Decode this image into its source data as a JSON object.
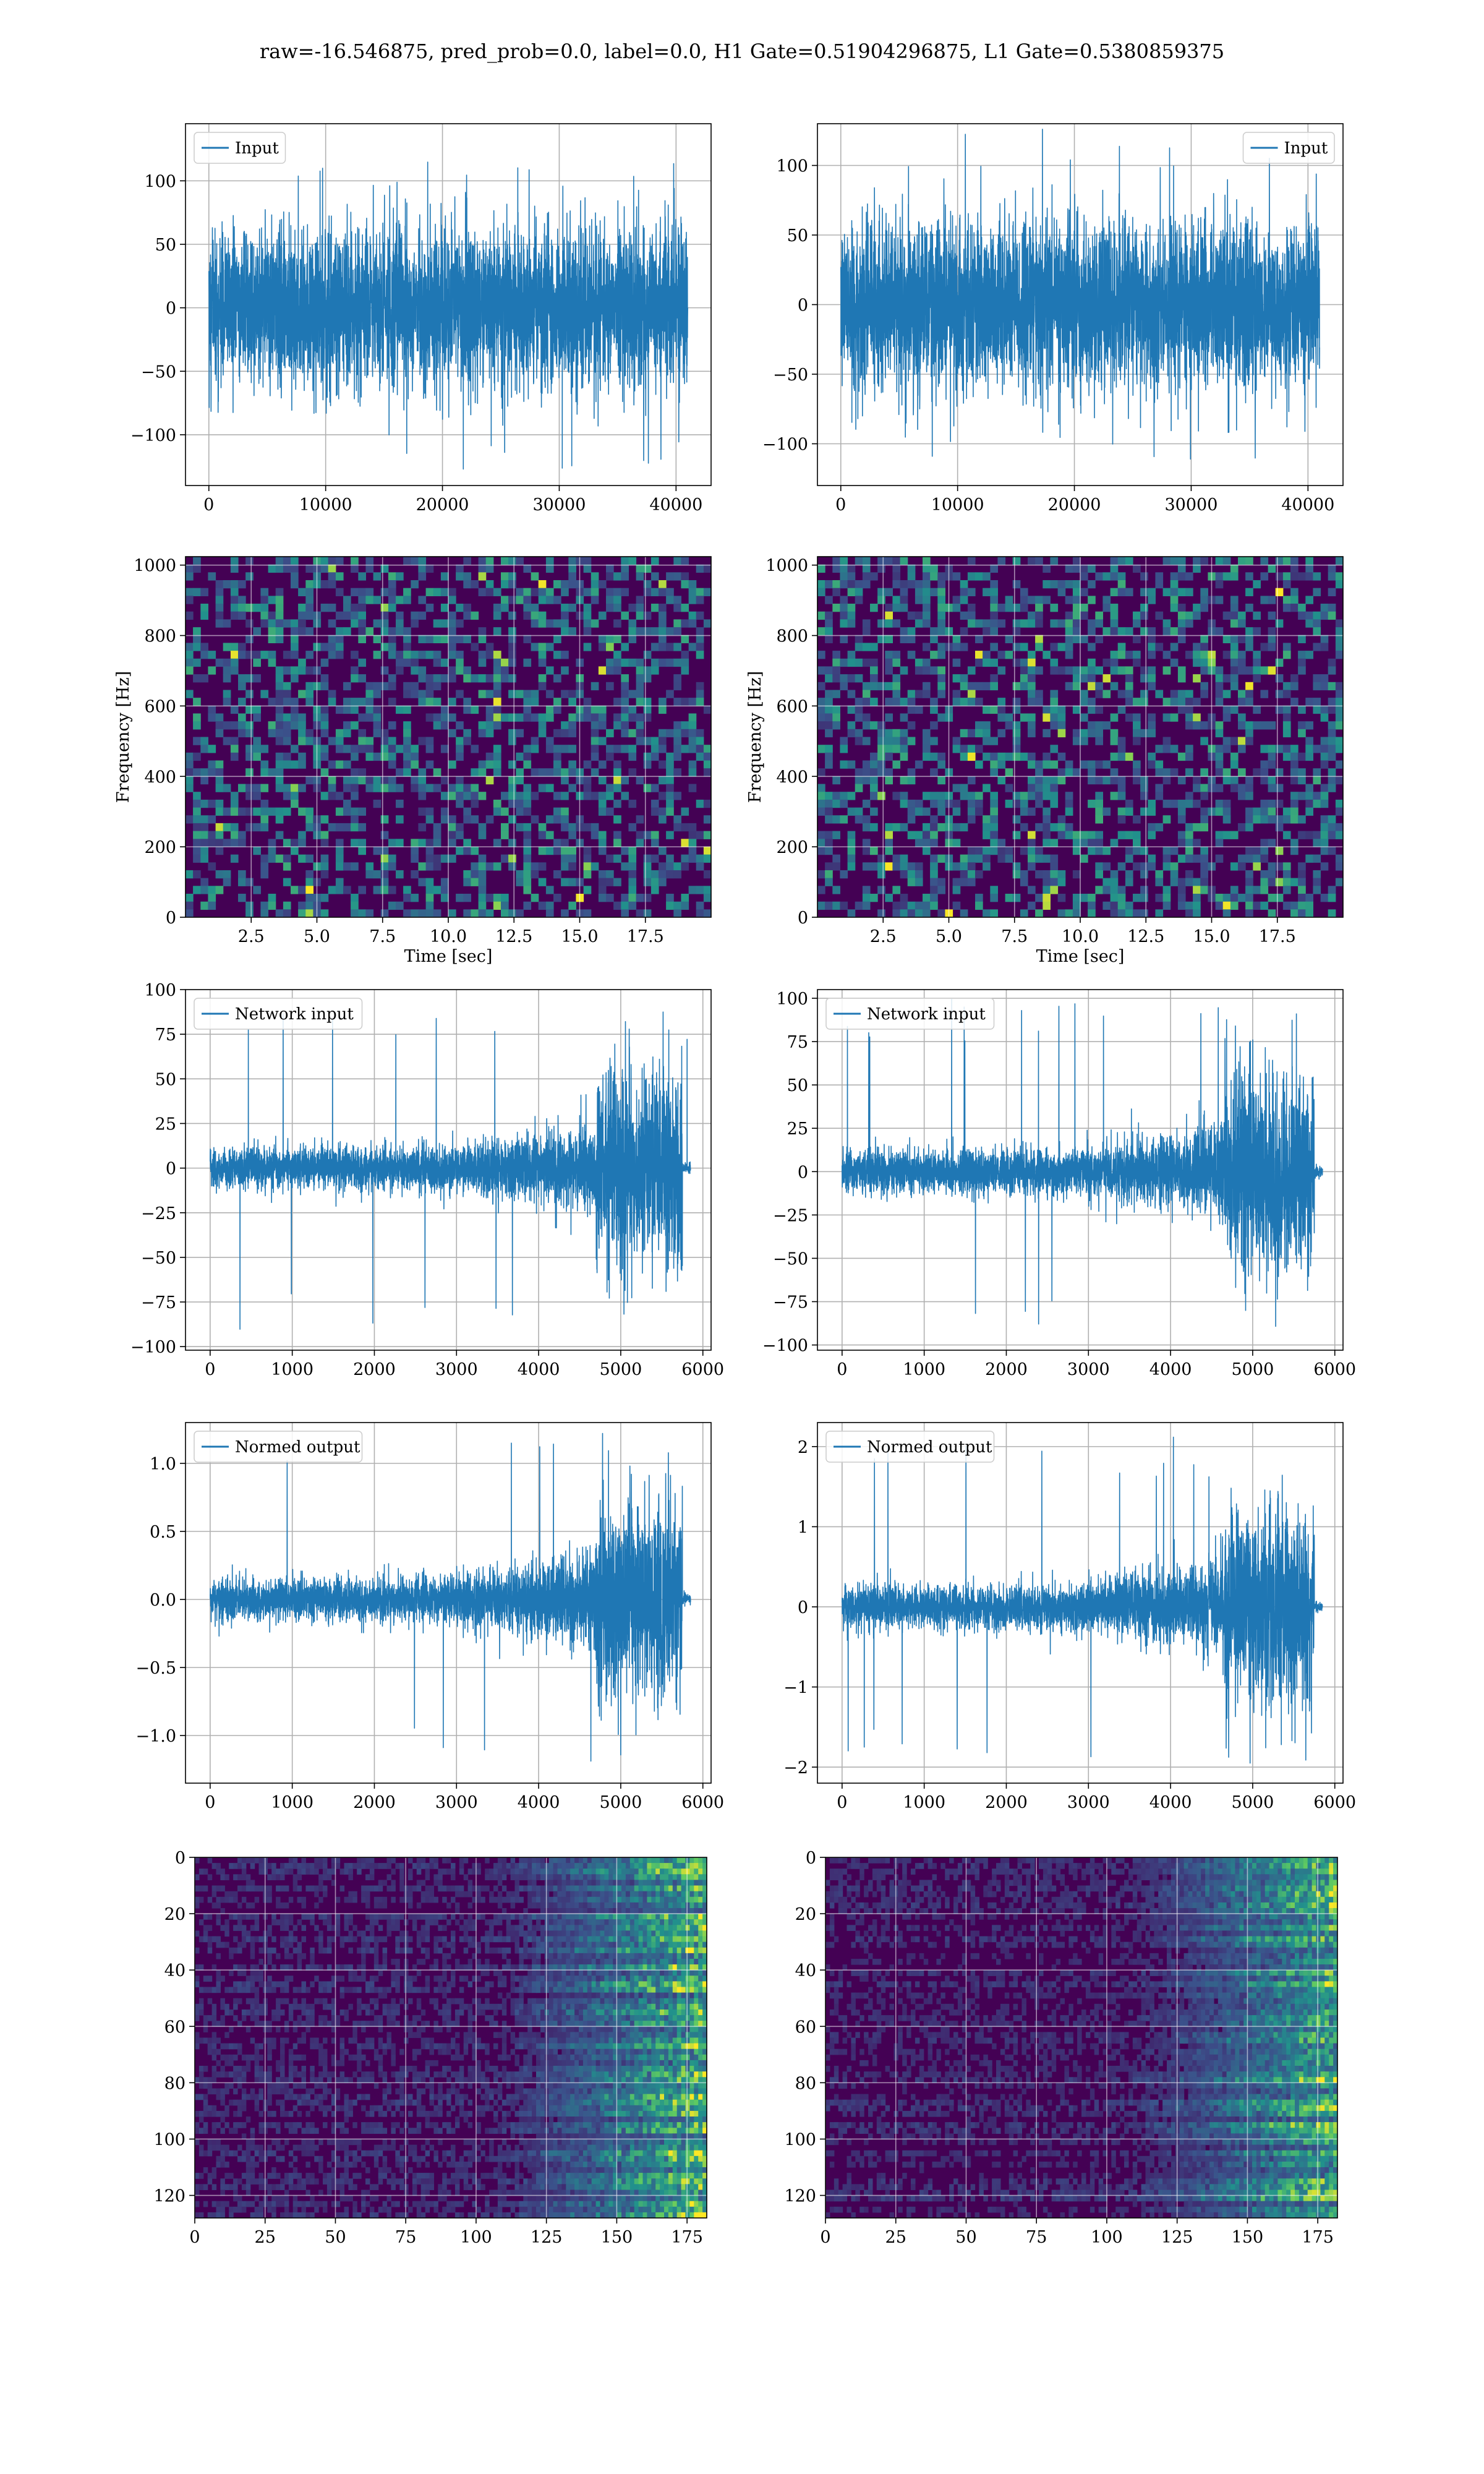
{
  "suptitle": "raw=-16.546875, pred_prob=0.0, label=0.0, H1 Gate=0.51904296875, L1 Gate=0.5380859375",
  "colors": {
    "line": "#1f77b4",
    "grid": "#b0b0b0",
    "map_low": "#440154",
    "map_mid": "#21918c",
    "map_high": "#fde725"
  },
  "chart_data": [
    {
      "type": "line",
      "legend": [
        "Input"
      ],
      "legend_loc": "upper-left",
      "grid": true,
      "xlim": [
        -2000,
        43000
      ],
      "ylim": [
        -140,
        145
      ],
      "xticks": [
        0,
        10000,
        20000,
        30000,
        40000
      ],
      "xtick_labels": [
        "0",
        "10000",
        "20000",
        "30000",
        "40000"
      ],
      "yticks": [
        -100,
        -50,
        0,
        50,
        100
      ],
      "ytick_labels": [
        "−100",
        "−50",
        "0",
        "50",
        "100"
      ],
      "signal": {
        "x_start": 0,
        "x_end": 41000,
        "noise_std": 30,
        "peak_min": -130,
        "peak_max": 120
      }
    },
    {
      "type": "line",
      "legend": [
        "Input"
      ],
      "legend_loc": "upper-right",
      "grid": true,
      "xlim": [
        -2000,
        43000
      ],
      "ylim": [
        -130,
        130
      ],
      "xticks": [
        0,
        10000,
        20000,
        30000,
        40000
      ],
      "xtick_labels": [
        "0",
        "10000",
        "20000",
        "30000",
        "40000"
      ],
      "yticks": [
        -100,
        -50,
        0,
        50,
        100
      ],
      "ytick_labels": [
        "−100",
        "−50",
        "0",
        "50",
        "100"
      ],
      "signal": {
        "x_start": 0,
        "x_end": 41000,
        "noise_std": 30,
        "peak_min": -115,
        "peak_max": 128
      }
    },
    {
      "type": "heatmap",
      "xlabel": "Time [sec]",
      "ylabel": "Frequency [Hz]",
      "grid": true,
      "xlim": [
        0,
        20
      ],
      "ylim": [
        0,
        1024
      ],
      "xticks": [
        2.5,
        5.0,
        7.5,
        10.0,
        12.5,
        15.0,
        17.5
      ],
      "xtick_labels": [
        "2.5",
        "5.0",
        "7.5",
        "10.0",
        "12.5",
        "15.0",
        "17.5"
      ],
      "yticks": [
        0,
        200,
        400,
        600,
        800,
        1000
      ],
      "ytick_labels": [
        "0",
        "200",
        "400",
        "600",
        "800",
        "1000"
      ]
    },
    {
      "type": "heatmap",
      "xlabel": "Time [sec]",
      "ylabel": "Frequency [Hz]",
      "grid": true,
      "xlim": [
        0,
        20
      ],
      "ylim": [
        0,
        1024
      ],
      "xticks": [
        2.5,
        5.0,
        7.5,
        10.0,
        12.5,
        15.0,
        17.5
      ],
      "xtick_labels": [
        "2.5",
        "5.0",
        "7.5",
        "10.0",
        "12.5",
        "15.0",
        "17.5"
      ],
      "yticks": [
        0,
        200,
        400,
        600,
        800,
        1000
      ],
      "ytick_labels": [
        "0",
        "200",
        "400",
        "600",
        "800",
        "1000"
      ]
    },
    {
      "type": "line",
      "legend": [
        "Network input"
      ],
      "legend_loc": "upper-left",
      "grid": true,
      "xlim": [
        -300,
        6100
      ],
      "ylim": [
        -102,
        100
      ],
      "xticks": [
        0,
        1000,
        2000,
        3000,
        4000,
        5000,
        6000
      ],
      "xtick_labels": [
        "0",
        "1000",
        "2000",
        "3000",
        "4000",
        "5000",
        "6000"
      ],
      "yticks": [
        -100,
        -75,
        -50,
        -25,
        0,
        25,
        50,
        75,
        100
      ],
      "ytick_labels": [
        "−100",
        "−75",
        "−50",
        "−25",
        "0",
        "25",
        "50",
        "75",
        "100"
      ],
      "signal": {
        "x_start": 0,
        "x_end": 5850,
        "x_cut": 5750,
        "noise_std": 5.5,
        "burst_start": 4700,
        "burst_std": 28,
        "peak_min": -92,
        "peak_max": 92
      }
    },
    {
      "type": "line",
      "legend": [
        "Network input"
      ],
      "legend_loc": "upper-left",
      "grid": true,
      "xlim": [
        -300,
        6100
      ],
      "ylim": [
        -103,
        105
      ],
      "xticks": [
        0,
        1000,
        2000,
        3000,
        4000,
        5000,
        6000
      ],
      "xtick_labels": [
        "0",
        "1000",
        "2000",
        "3000",
        "4000",
        "5000",
        "6000"
      ],
      "yticks": [
        -100,
        -75,
        -50,
        -25,
        0,
        25,
        50,
        75,
        100
      ],
      "ytick_labels": [
        "−100",
        "−75",
        "−50",
        "−25",
        "0",
        "25",
        "50",
        "75",
        "100"
      ],
      "signal": {
        "x_start": 0,
        "x_end": 5850,
        "x_cut": 5750,
        "noise_std": 6,
        "burst_start": 4650,
        "burst_std": 28,
        "peak_min": -90,
        "peak_max": 100
      }
    },
    {
      "type": "line",
      "legend": [
        "Normed output"
      ],
      "legend_loc": "upper-left",
      "grid": true,
      "xlim": [
        -300,
        6100
      ],
      "ylim": [
        -1.35,
        1.3
      ],
      "xticks": [
        0,
        1000,
        2000,
        3000,
        4000,
        5000,
        6000
      ],
      "xtick_labels": [
        "0",
        "1000",
        "2000",
        "3000",
        "4000",
        "5000",
        "6000"
      ],
      "yticks": [
        -1.0,
        -0.5,
        0.0,
        0.5,
        1.0
      ],
      "ytick_labels": [
        "−1.0",
        "−0.5",
        "0.0",
        "0.5",
        "1.0"
      ],
      "signal": {
        "x_start": 0,
        "x_end": 5850,
        "x_cut": 5750,
        "noise_std": 0.075,
        "burst_start": 4700,
        "burst_std": 0.37,
        "peak_min": -1.22,
        "peak_max": 1.22
      }
    },
    {
      "type": "line",
      "legend": [
        "Normed output"
      ],
      "legend_loc": "upper-left",
      "grid": true,
      "xlim": [
        -300,
        6100
      ],
      "ylim": [
        -2.2,
        2.3
      ],
      "xticks": [
        0,
        1000,
        2000,
        3000,
        4000,
        5000,
        6000
      ],
      "xtick_labels": [
        "0",
        "1000",
        "2000",
        "3000",
        "4000",
        "5000",
        "6000"
      ],
      "yticks": [
        -2,
        -1,
        0,
        1,
        2
      ],
      "ytick_labels": [
        "−2",
        "−1",
        "0",
        "1",
        "2"
      ],
      "signal": {
        "x_start": 0,
        "x_end": 5850,
        "x_cut": 5750,
        "noise_std": 0.13,
        "burst_start": 4650,
        "burst_std": 0.6,
        "peak_min": -1.95,
        "peak_max": 2.15
      }
    },
    {
      "type": "heatmap",
      "grid": true,
      "y_inverted": true,
      "xlim": [
        0,
        182
      ],
      "ylim": [
        128,
        0
      ],
      "xticks": [
        0,
        25,
        50,
        75,
        100,
        125,
        150,
        175
      ],
      "xtick_labels": [
        "0",
        "25",
        "50",
        "75",
        "100",
        "125",
        "150",
        "175"
      ],
      "yticks": [
        0,
        20,
        40,
        60,
        80,
        100,
        120
      ],
      "ytick_labels": [
        "0",
        "20",
        "40",
        "60",
        "80",
        "100",
        "120"
      ]
    },
    {
      "type": "heatmap",
      "grid": true,
      "y_inverted": true,
      "xlim": [
        0,
        182
      ],
      "ylim": [
        128,
        0
      ],
      "xticks": [
        0,
        25,
        50,
        75,
        100,
        125,
        150,
        175
      ],
      "xtick_labels": [
        "0",
        "25",
        "50",
        "75",
        "100",
        "125",
        "150",
        "175"
      ],
      "yticks": [
        0,
        20,
        40,
        60,
        80,
        100,
        120
      ],
      "ytick_labels": [
        "0",
        "20",
        "40",
        "60",
        "80",
        "100",
        "120"
      ]
    }
  ]
}
